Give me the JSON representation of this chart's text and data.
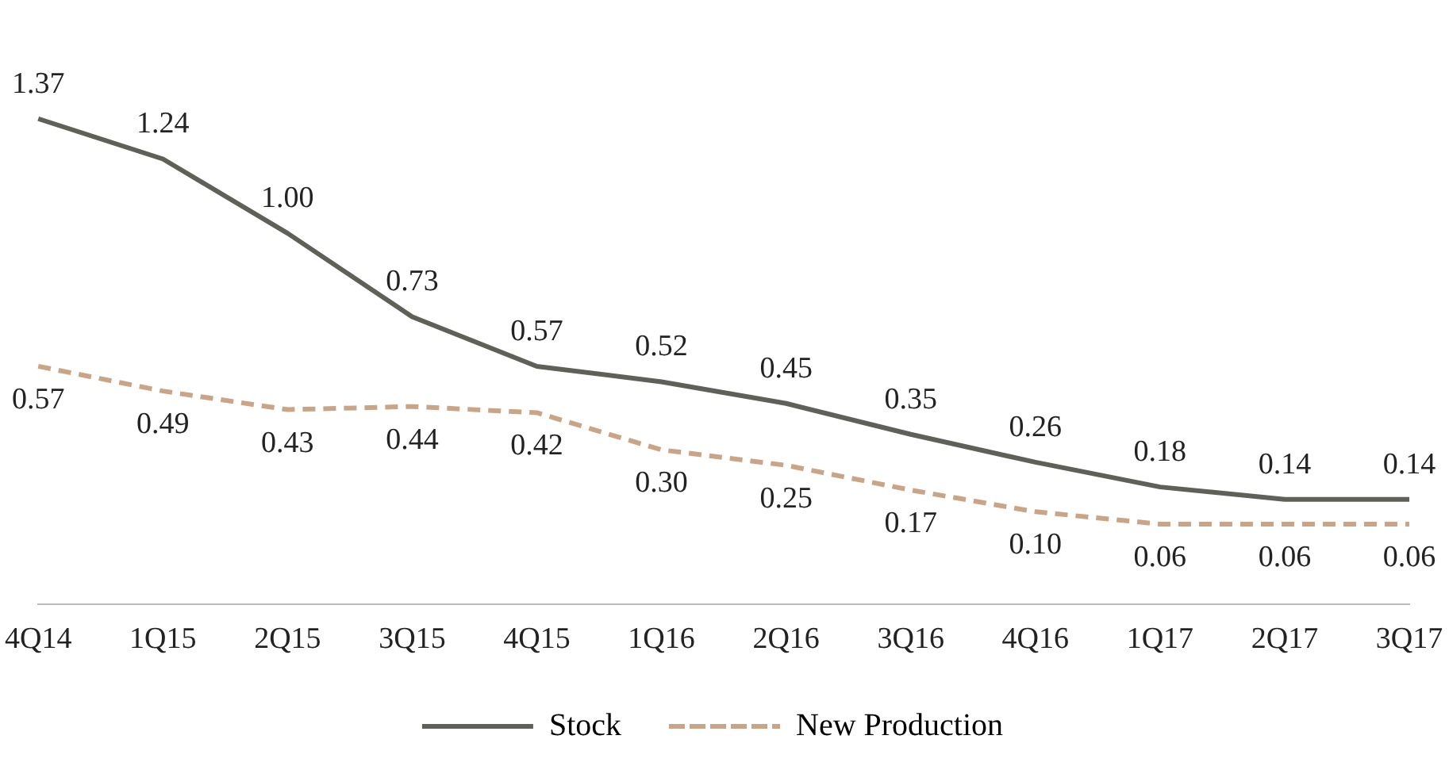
{
  "chart_data": {
    "type": "line",
    "categories": [
      "4Q14",
      "1Q15",
      "2Q15",
      "3Q15",
      "4Q15",
      "1Q16",
      "2Q16",
      "3Q16",
      "4Q16",
      "1Q17",
      "2Q17",
      "3Q17"
    ],
    "series": [
      {
        "name": "Stock",
        "color": "#5f6057",
        "line_style": "solid",
        "values": [
          1.37,
          1.24,
          1.0,
          0.73,
          0.57,
          0.52,
          0.45,
          0.35,
          0.26,
          0.18,
          0.14,
          0.14
        ],
        "value_labels": [
          "1.37",
          "1.24",
          "1.00",
          "0.73",
          "0.57",
          "0.52",
          "0.45",
          "0.35",
          "0.26",
          "0.18",
          "0.14",
          "0.14"
        ]
      },
      {
        "name": "New Production",
        "color": "#c9a487",
        "line_style": "dashed",
        "values": [
          0.57,
          0.49,
          0.43,
          0.44,
          0.42,
          0.3,
          0.25,
          0.17,
          0.1,
          0.06,
          0.06,
          0.06
        ],
        "value_labels": [
          "0.57",
          "0.49",
          "0.43",
          "0.44",
          "0.42",
          "0.30",
          "0.25",
          "0.17",
          "0.10",
          "0.06",
          "0.06",
          "0.06"
        ]
      }
    ],
    "tick_labels": "x",
    "legend": "bottom",
    "marker": "none"
  }
}
